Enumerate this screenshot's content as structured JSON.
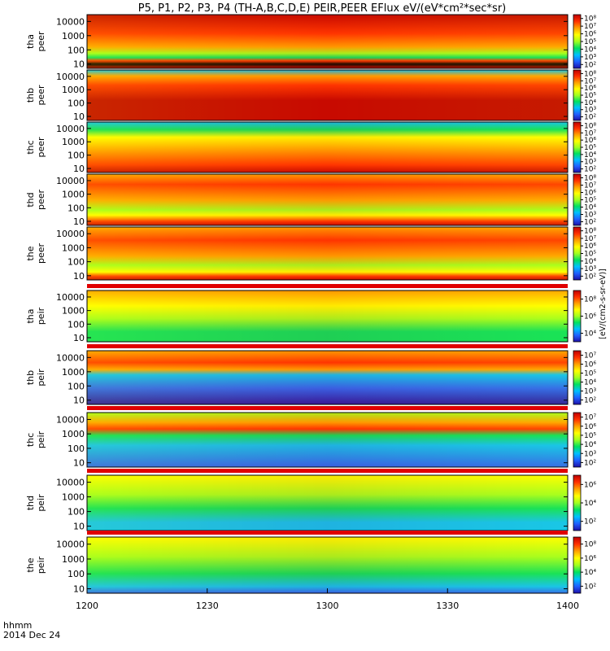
{
  "chart_data": {
    "type": "heatmap",
    "title": "P5, P1, P2, P3, P4 (TH-A,B,C,D,E) PEIR,PEER EFlux eV/(eV*cm²*sec*sr)",
    "x_axis": {
      "label": "hhmm",
      "date": "2014 Dec 24",
      "tick_labels": [
        "1200",
        "1230",
        "1300",
        "1330",
        "1400"
      ],
      "tick_values": [
        0,
        30,
        60,
        90,
        120
      ]
    },
    "y_axis": {
      "scale": "log",
      "tick_labels": [
        "10",
        "100",
        "1000",
        "10000"
      ],
      "range": [
        5,
        30000
      ]
    },
    "colorbar_unit": "[eV/(cm2-s-sr-eV)]",
    "colormap": [
      "#1e0fa8",
      "#2060ff",
      "#00c0ff",
      "#00e060",
      "#a0ff20",
      "#ffff00",
      "#ffa000",
      "#ff3000",
      "#c00000"
    ],
    "panels": [
      {
        "label": [
          "tha",
          "peer"
        ],
        "colorbar_ticks": [
          "10²",
          "10³",
          "10⁴",
          "10⁵",
          "10⁶",
          "10⁷",
          "10⁸"
        ],
        "red_gap": false
      },
      {
        "label": [
          "thb",
          "peer"
        ],
        "colorbar_ticks": [
          "10²",
          "10³",
          "10⁴",
          "10⁵",
          "10⁶",
          "10⁷",
          "10⁸"
        ],
        "red_gap": false
      },
      {
        "label": [
          "thc",
          "peer"
        ],
        "colorbar_ticks": [
          "10²",
          "10³",
          "10⁴",
          "10⁵",
          "10⁶",
          "10⁷",
          "10⁸"
        ],
        "red_gap": false
      },
      {
        "label": [
          "thd",
          "peer"
        ],
        "colorbar_ticks": [
          "10²",
          "10³",
          "10⁴",
          "10⁵",
          "10⁶",
          "10⁷",
          "10⁸"
        ],
        "red_gap": false
      },
      {
        "label": [
          "the",
          "peer"
        ],
        "colorbar_ticks": [
          "10²",
          "10³",
          "10⁴",
          "10⁵",
          "10⁶",
          "10⁷",
          "10⁸"
        ],
        "red_gap": false
      },
      {
        "label": [
          "tha",
          "peir"
        ],
        "colorbar_ticks": [
          "10⁴",
          "10⁶",
          "10⁸"
        ],
        "red_gap": true
      },
      {
        "label": [
          "thb",
          "peir"
        ],
        "colorbar_ticks": [
          "10²",
          "10³",
          "10⁴",
          "10⁵",
          "10⁶",
          "10⁷"
        ],
        "red_gap": true
      },
      {
        "label": [
          "thc",
          "peir"
        ],
        "colorbar_ticks": [
          "10²",
          "10³",
          "10⁴",
          "10⁵",
          "10⁶",
          "10⁷"
        ],
        "red_gap": true
      },
      {
        "label": [
          "thd",
          "peir"
        ],
        "colorbar_ticks": [
          "10²",
          "10⁴",
          "10⁶"
        ],
        "red_gap": true
      },
      {
        "label": [
          "the",
          "peir"
        ],
        "colorbar_ticks": [
          "10²",
          "10⁴",
          "10⁶",
          "10⁸"
        ],
        "red_gap": true
      }
    ]
  }
}
